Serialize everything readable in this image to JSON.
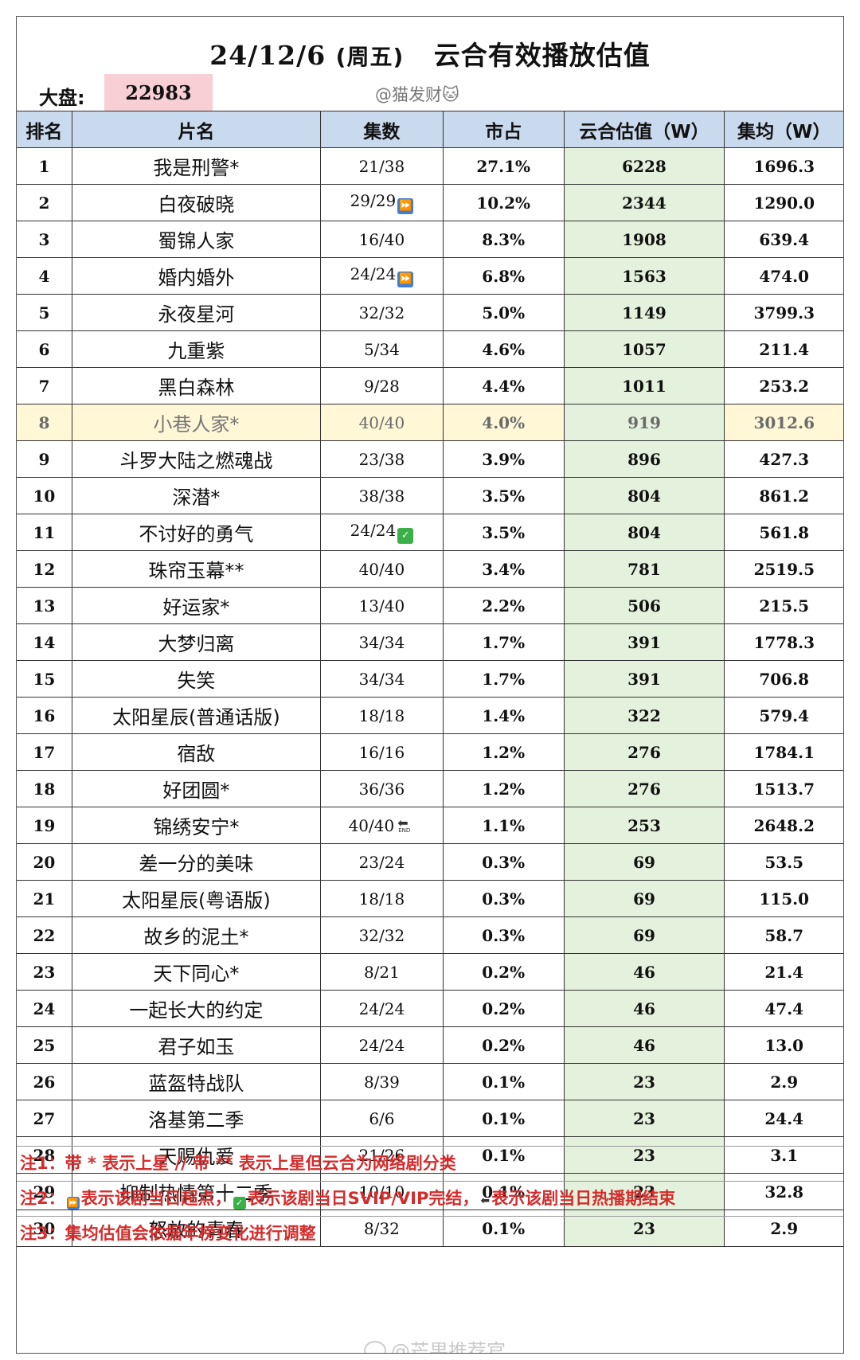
{
  "header": {
    "date": "24/12/6",
    "weekday": "(周五)",
    "title": "云合有效播放估值",
    "market_label": "大盘:",
    "market_value": "22983",
    "author": "@猫发财🐱"
  },
  "columns": [
    "排名",
    "片名",
    "集数",
    "市占",
    "云合估值（W）",
    "集均（W）"
  ],
  "rows": [
    {
      "rank": "1",
      "name": "我是刑警*",
      "episodes": "21/38",
      "badge": "",
      "share": "27.1%",
      "value": "6228",
      "avg": "1696.3"
    },
    {
      "rank": "2",
      "name": "白夜破晓",
      "episodes": "29/29",
      "badge": "ff",
      "share": "10.2%",
      "value": "2344",
      "avg": "1290.0"
    },
    {
      "rank": "3",
      "name": "蜀锦人家",
      "episodes": "16/40",
      "badge": "",
      "share": "8.3%",
      "value": "1908",
      "avg": "639.4"
    },
    {
      "rank": "4",
      "name": "婚内婚外",
      "episodes": "24/24",
      "badge": "ff",
      "share": "6.8%",
      "value": "1563",
      "avg": "474.0"
    },
    {
      "rank": "5",
      "name": "永夜星河",
      "episodes": "32/32",
      "badge": "",
      "share": "5.0%",
      "value": "1149",
      "avg": "3799.3"
    },
    {
      "rank": "6",
      "name": "九重紫",
      "episodes": "5/34",
      "badge": "",
      "share": "4.6%",
      "value": "1057",
      "avg": "211.4"
    },
    {
      "rank": "7",
      "name": "黑白森林",
      "episodes": "9/28",
      "badge": "",
      "share": "4.4%",
      "value": "1011",
      "avg": "253.2"
    },
    {
      "rank": "8",
      "name": "小巷人家*",
      "episodes": "40/40",
      "badge": "",
      "share": "4.0%",
      "value": "919",
      "avg": "3012.6",
      "highlight": true
    },
    {
      "rank": "9",
      "name": "斗罗大陆之燃魂战",
      "episodes": "23/38",
      "badge": "",
      "share": "3.9%",
      "value": "896",
      "avg": "427.3"
    },
    {
      "rank": "10",
      "name": "深潜*",
      "episodes": "38/38",
      "badge": "",
      "share": "3.5%",
      "value": "804",
      "avg": "861.2"
    },
    {
      "rank": "11",
      "name": "不讨好的勇气",
      "episodes": "24/24",
      "badge": "ok",
      "share": "3.5%",
      "value": "804",
      "avg": "561.8"
    },
    {
      "rank": "12",
      "name": "珠帘玉幕**",
      "episodes": "40/40",
      "badge": "",
      "share": "3.4%",
      "value": "781",
      "avg": "2519.5"
    },
    {
      "rank": "13",
      "name": "好运家*",
      "episodes": "13/40",
      "badge": "",
      "share": "2.2%",
      "value": "506",
      "avg": "215.5"
    },
    {
      "rank": "14",
      "name": "大梦归离",
      "episodes": "34/34",
      "badge": "",
      "share": "1.7%",
      "value": "391",
      "avg": "1778.3"
    },
    {
      "rank": "15",
      "name": "失笑",
      "episodes": "34/34",
      "badge": "",
      "share": "1.7%",
      "value": "391",
      "avg": "706.8"
    },
    {
      "rank": "16",
      "name": "太阳星辰(普通话版)",
      "episodes": "18/18",
      "badge": "",
      "share": "1.4%",
      "value": "322",
      "avg": "579.4"
    },
    {
      "rank": "17",
      "name": "宿敌",
      "episodes": "16/16",
      "badge": "",
      "share": "1.2%",
      "value": "276",
      "avg": "1784.1"
    },
    {
      "rank": "18",
      "name": "好团圆*",
      "episodes": "36/36",
      "badge": "",
      "share": "1.2%",
      "value": "276",
      "avg": "1513.7"
    },
    {
      "rank": "19",
      "name": "锦绣安宁*",
      "episodes": "40/40",
      "badge": "end",
      "share": "1.1%",
      "value": "253",
      "avg": "2648.2"
    },
    {
      "rank": "20",
      "name": "差一分的美味",
      "episodes": "23/24",
      "badge": "",
      "share": "0.3%",
      "value": "69",
      "avg": "53.5"
    },
    {
      "rank": "21",
      "name": "太阳星辰(粤语版)",
      "episodes": "18/18",
      "badge": "",
      "share": "0.3%",
      "value": "69",
      "avg": "115.0"
    },
    {
      "rank": "22",
      "name": "故乡的泥土*",
      "episodes": "32/32",
      "badge": "",
      "share": "0.3%",
      "value": "69",
      "avg": "58.7"
    },
    {
      "rank": "23",
      "name": "天下同心*",
      "episodes": "8/21",
      "badge": "",
      "share": "0.2%",
      "value": "46",
      "avg": "21.4"
    },
    {
      "rank": "24",
      "name": "一起长大的约定",
      "episodes": "24/24",
      "badge": "",
      "share": "0.2%",
      "value": "46",
      "avg": "47.4"
    },
    {
      "rank": "25",
      "name": "君子如玉",
      "episodes": "24/24",
      "badge": "",
      "share": "0.2%",
      "value": "46",
      "avg": "13.0"
    },
    {
      "rank": "26",
      "name": "蓝盔特战队",
      "episodes": "8/39",
      "badge": "",
      "share": "0.1%",
      "value": "23",
      "avg": "2.9"
    },
    {
      "rank": "27",
      "name": "洛基第二季",
      "episodes": "6/6",
      "badge": "",
      "share": "0.1%",
      "value": "23",
      "avg": "24.4"
    },
    {
      "rank": "28",
      "name": "天赐仇爱",
      "episodes": "21/26",
      "badge": "",
      "share": "0.1%",
      "value": "23",
      "avg": "3.1"
    },
    {
      "rank": "29",
      "name": "抑制热情第十二季",
      "episodes": "10/10",
      "badge": "",
      "share": "0.1%",
      "value": "23",
      "avg": "32.8"
    },
    {
      "rank": "30",
      "name": "怒放的青春",
      "episodes": "8/32",
      "badge": "",
      "share": "0.1%",
      "value": "23",
      "avg": "2.9"
    }
  ],
  "notes": {
    "note1": "注1：带 * 表示上星 // 带 ** 表示上星但云合为网络剧分类",
    "note2_prefix": "注2：",
    "note2_a": "表示该剧当日超点，",
    "note2_b": "表示该剧当日SVIP/VIP完结，",
    "note2_c": "表示该剧当日热播期结束",
    "note3": "注3：集均估值会依据年榜变化进行调整"
  },
  "watermark": "@芒果推荐官",
  "icons": {
    "fast_forward": "fast-forward-icon",
    "check": "check-icon",
    "end": "end-icon"
  },
  "colors": {
    "header_bg": "#c9d9ee",
    "value_col_bg": "#e4f1dc",
    "market_bg": "#f7cfd4",
    "note_text": "#d42c2c"
  }
}
